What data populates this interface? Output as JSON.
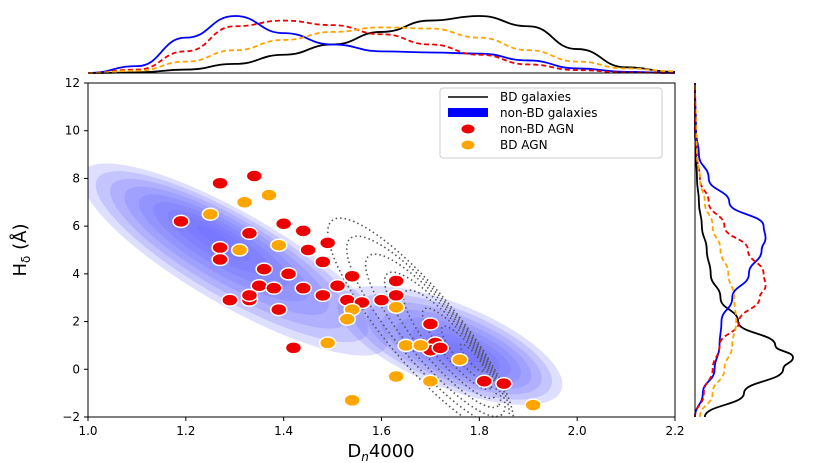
{
  "chart_data": {
    "type": "scatter",
    "xlabel": "D",
    "xlabel_sub": "n",
    "xlabel_suffix": "4000",
    "ylabel": "H",
    "ylabel_sub": "δ",
    "ylabel_suffix": " (Å)",
    "xlim": [
      1.0,
      2.2
    ],
    "ylim": [
      -2,
      12
    ],
    "xticks": [
      "1.0",
      "1.2",
      "1.4",
      "1.6",
      "1.8",
      "2.0",
      "2.2"
    ],
    "yticks": [
      "−2",
      "0",
      "2",
      "4",
      "6",
      "8",
      "10",
      "12"
    ],
    "colors": {
      "bd_line": "#000000",
      "non_bd_fill": "#0000ff",
      "non_bd_agn": "#ee0000",
      "bd_agn": "#ffa500",
      "contour_dots": "#555555"
    },
    "legend": {
      "placement": "top-right",
      "entries": [
        {
          "label": "BD galaxies",
          "style": "line"
        },
        {
          "label": "non-BD galaxies",
          "style": "patch"
        },
        {
          "label": "non-BD AGN",
          "style": "marker-red"
        },
        {
          "label": "BD AGN",
          "style": "marker-orange"
        }
      ]
    },
    "series": [
      {
        "name": "non-BD AGN",
        "points": [
          [
            1.27,
            7.8
          ],
          [
            1.34,
            8.1
          ],
          [
            1.19,
            6.2
          ],
          [
            1.27,
            5.1
          ],
          [
            1.27,
            4.6
          ],
          [
            1.33,
            5.7
          ],
          [
            1.36,
            4.2
          ],
          [
            1.4,
            6.1
          ],
          [
            1.41,
            4.0
          ],
          [
            1.44,
            5.8
          ],
          [
            1.45,
            5.0
          ],
          [
            1.49,
            5.3
          ],
          [
            1.48,
            4.5
          ],
          [
            1.29,
            2.9
          ],
          [
            1.33,
            2.9
          ],
          [
            1.33,
            3.1
          ],
          [
            1.35,
            3.5
          ],
          [
            1.38,
            3.4
          ],
          [
            1.39,
            2.5
          ],
          [
            1.44,
            3.4
          ],
          [
            1.48,
            3.1
          ],
          [
            1.51,
            3.5
          ],
          [
            1.54,
            3.9
          ],
          [
            1.53,
            2.9
          ],
          [
            1.56,
            2.8
          ],
          [
            1.6,
            2.9
          ],
          [
            1.63,
            3.7
          ],
          [
            1.63,
            3.1
          ],
          [
            1.42,
            0.9
          ],
          [
            1.7,
            1.9
          ],
          [
            1.71,
            1.1
          ],
          [
            1.7,
            0.8
          ],
          [
            1.72,
            0.9
          ],
          [
            1.81,
            -0.5
          ],
          [
            1.85,
            -0.6
          ]
        ]
      },
      {
        "name": "BD AGN",
        "points": [
          [
            1.25,
            6.5
          ],
          [
            1.32,
            7.0
          ],
          [
            1.37,
            7.3
          ],
          [
            1.31,
            5.0
          ],
          [
            1.39,
            5.2
          ],
          [
            1.54,
            2.5
          ],
          [
            1.53,
            2.1
          ],
          [
            1.63,
            2.6
          ],
          [
            1.65,
            1.0
          ],
          [
            1.68,
            1.0
          ],
          [
            1.76,
            0.4
          ],
          [
            1.49,
            1.1
          ],
          [
            1.63,
            -0.3
          ],
          [
            1.7,
            -0.5
          ],
          [
            1.54,
            -1.3
          ],
          [
            1.91,
            -1.5
          ]
        ]
      }
    ],
    "density_contours": {
      "non_bd_galaxies": {
        "levels": 9,
        "peak_1": [
          1.25,
          5.7
        ],
        "peak_2": [
          1.78,
          0.5
        ]
      },
      "bd_galaxies": {
        "levels": 8,
        "peak": [
          1.8,
          0.3
        ]
      }
    },
    "top_marginal": {
      "axis": "x",
      "series": [
        {
          "name": "BD galaxies",
          "style": "solid-black",
          "x": [
            1.0,
            1.1,
            1.2,
            1.3,
            1.4,
            1.5,
            1.6,
            1.7,
            1.8,
            1.9,
            2.0,
            2.1,
            2.2
          ],
          "density": [
            0,
            0.01,
            0.06,
            0.16,
            0.32,
            0.5,
            0.72,
            0.92,
            1.0,
            0.82,
            0.42,
            0.1,
            0.02
          ]
        },
        {
          "name": "non-BD galaxies",
          "style": "solid-blue",
          "x": [
            1.0,
            1.1,
            1.2,
            1.3,
            1.4,
            1.5,
            1.6,
            1.7,
            1.8,
            1.9,
            2.0,
            2.1,
            2.2
          ],
          "density": [
            0,
            0.12,
            0.62,
            1.0,
            0.7,
            0.5,
            0.38,
            0.36,
            0.34,
            0.22,
            0.08,
            0.02,
            0
          ]
        },
        {
          "name": "non-BD AGN",
          "style": "dashed-red",
          "x": [
            1.0,
            1.1,
            1.2,
            1.3,
            1.4,
            1.5,
            1.6,
            1.7,
            1.8,
            1.9,
            2.0,
            2.1,
            2.2
          ],
          "density": [
            0,
            0.06,
            0.38,
            0.82,
            0.92,
            0.84,
            0.68,
            0.5,
            0.32,
            0.15,
            0.05,
            0.01,
            0
          ]
        },
        {
          "name": "BD AGN",
          "style": "dashed-orange",
          "x": [
            1.0,
            1.1,
            1.2,
            1.3,
            1.4,
            1.5,
            1.6,
            1.7,
            1.8,
            1.9,
            2.0,
            2.1,
            2.2
          ],
          "density": [
            0,
            0.04,
            0.2,
            0.4,
            0.58,
            0.72,
            0.8,
            0.78,
            0.62,
            0.4,
            0.2,
            0.08,
            0.03
          ]
        }
      ]
    },
    "right_marginal": {
      "axis": "y",
      "series": [
        {
          "name": "BD galaxies",
          "style": "solid-black",
          "y": [
            -2,
            -1,
            0,
            0.5,
            1,
            2,
            3,
            4,
            5,
            6,
            7,
            8,
            9,
            10,
            12
          ],
          "density": [
            0.1,
            0.5,
            0.9,
            1.0,
            0.82,
            0.44,
            0.26,
            0.16,
            0.12,
            0.07,
            0.04,
            0.02,
            0.01,
            0,
            0
          ]
        },
        {
          "name": "non-BD galaxies",
          "style": "solid-blue",
          "y": [
            -2,
            -1,
            0,
            1,
            2,
            3,
            4,
            5,
            5.5,
            6,
            7,
            8,
            9,
            10,
            12
          ],
          "density": [
            0,
            0.08,
            0.2,
            0.25,
            0.27,
            0.38,
            0.55,
            0.68,
            0.72,
            0.7,
            0.35,
            0.14,
            0.04,
            0.01,
            0
          ]
        },
        {
          "name": "non-BD AGN",
          "style": "dashed-red",
          "y": [
            -2,
            -1,
            0,
            1,
            2,
            3,
            3.5,
            4,
            5,
            6,
            7,
            8,
            9,
            10,
            12
          ],
          "density": [
            0,
            0.09,
            0.18,
            0.25,
            0.45,
            0.66,
            0.72,
            0.7,
            0.54,
            0.3,
            0.14,
            0.05,
            0.02,
            0,
            0
          ]
        },
        {
          "name": "BD AGN",
          "style": "dashed-orange",
          "y": [
            -2,
            -1,
            0,
            1,
            2,
            3,
            4,
            5,
            6,
            7,
            8,
            9,
            10,
            12
          ],
          "density": [
            0.05,
            0.18,
            0.3,
            0.38,
            0.42,
            0.4,
            0.34,
            0.26,
            0.18,
            0.1,
            0.05,
            0.02,
            0.01,
            0
          ]
        }
      ]
    }
  }
}
